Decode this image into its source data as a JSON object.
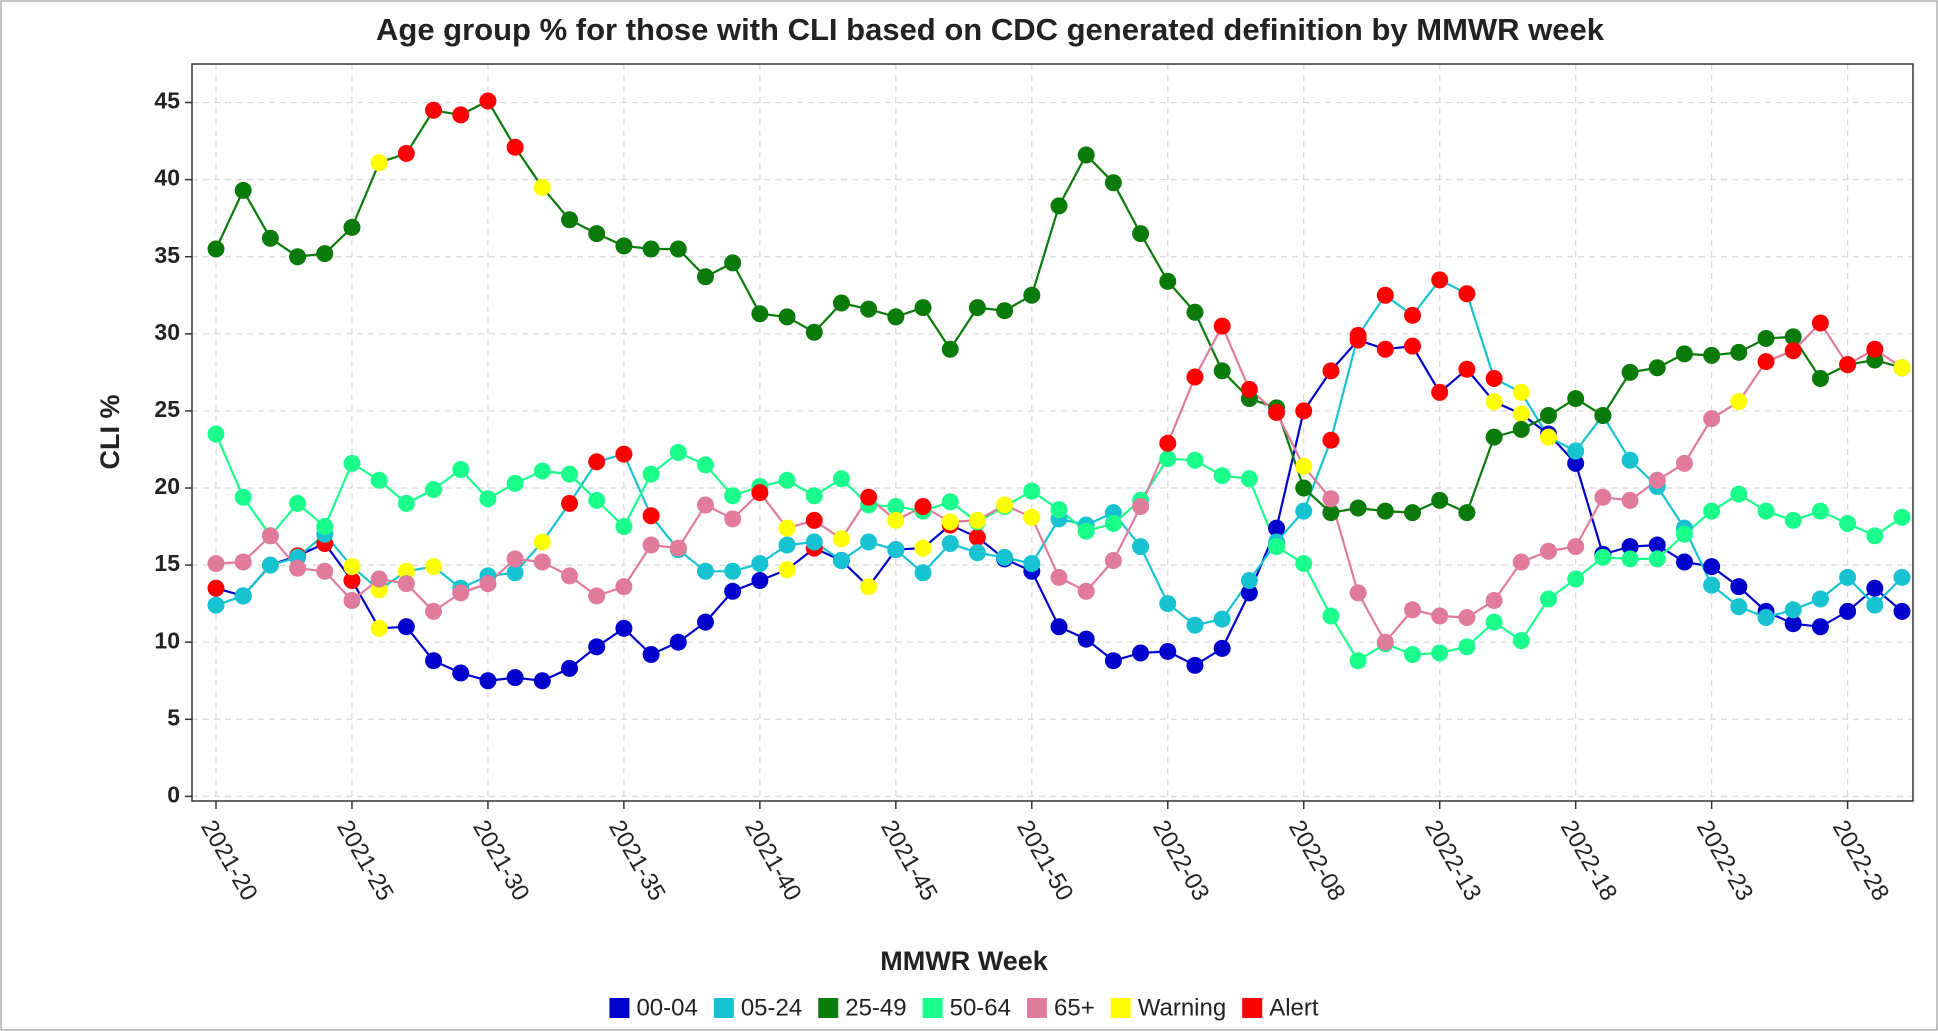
{
  "chart_data": {
    "type": "line",
    "title": "Age group % for those with CLI based on CDC generated definition by MMWR week",
    "x_label": "MMWR Week",
    "y_label": "CLI %",
    "categories": [
      "2021-20",
      null,
      null,
      null,
      null,
      "2021-25",
      null,
      null,
      null,
      null,
      "2021-30",
      null,
      null,
      null,
      null,
      "2021-35",
      null,
      null,
      null,
      null,
      "2021-40",
      null,
      null,
      null,
      null,
      "2021-45",
      null,
      null,
      null,
      null,
      "2021-50",
      null,
      null,
      null,
      null,
      "2022-03",
      null,
      null,
      null,
      null,
      "2022-08",
      null,
      null,
      null,
      null,
      "2022-13",
      null,
      null,
      null,
      null,
      "2022-18",
      null,
      null,
      null,
      null,
      "2022-23",
      null,
      null,
      null,
      null,
      "2022-28",
      null,
      null
    ],
    "ylim": [
      -0.3,
      47.5
    ],
    "yticks": [
      0,
      5,
      10,
      15,
      20,
      25,
      30,
      35,
      40,
      45
    ],
    "grid": true,
    "series": [
      {
        "name": "00-04",
        "color": "#0000cc",
        "values": [
          13.5,
          13.0,
          15.0,
          15.6,
          16.4,
          14.0,
          10.9,
          11.0,
          8.8,
          8.0,
          7.5,
          7.7,
          7.5,
          8.3,
          9.7,
          10.9,
          9.2,
          10.0,
          11.3,
          13.3,
          14.0,
          14.7,
          16.1,
          15.3,
          13.6,
          16.0,
          16.1,
          17.6,
          16.8,
          15.4,
          14.6,
          11.0,
          10.2,
          8.8,
          9.3,
          9.4,
          8.5,
          9.6,
          13.2,
          17.4,
          25.0,
          27.6,
          29.6,
          29.0,
          29.2,
          26.2,
          27.7,
          25.6,
          24.8,
          23.5,
          21.6,
          15.7,
          16.2,
          16.3,
          15.2,
          14.9,
          13.6,
          12.0,
          11.2,
          11.0,
          12.0,
          13.5,
          12.0
        ],
        "point_colors": [
          "#ff0000",
          null,
          "#ffff00",
          "#ff0000",
          "#ff0000",
          "#ff0000",
          "#ffff00",
          null,
          null,
          null,
          null,
          null,
          null,
          null,
          null,
          null,
          null,
          null,
          null,
          null,
          null,
          "#ffff00",
          "#ff0000",
          null,
          "#ffff00",
          null,
          "#ffff00",
          "#ff0000",
          "#ff0000",
          null,
          null,
          null,
          null,
          null,
          null,
          null,
          null,
          null,
          null,
          null,
          "#ff0000",
          "#ff0000",
          "#ff0000",
          "#ff0000",
          "#ff0000",
          "#ff0000",
          "#ff0000",
          "#ffff00",
          "#ffff00",
          null,
          null,
          null,
          null,
          null,
          null,
          null,
          null,
          null,
          null,
          null,
          null,
          null,
          null
        ]
      },
      {
        "name": "05-24",
        "color": "#17c3d0",
        "values": [
          12.4,
          13.0,
          15.0,
          15.5,
          17.0,
          14.9,
          13.4,
          14.6,
          14.9,
          13.5,
          14.3,
          14.5,
          16.5,
          19.0,
          21.7,
          22.2,
          18.2,
          16.0,
          14.6,
          14.6,
          15.1,
          16.3,
          16.5,
          15.3,
          16.5,
          16.0,
          14.5,
          16.4,
          15.8,
          15.5,
          15.1,
          18.0,
          17.6,
          18.4,
          16.2,
          12.5,
          11.1,
          11.5,
          14.0,
          16.5,
          18.5,
          23.1,
          29.9,
          32.5,
          31.2,
          33.5,
          32.6,
          27.1,
          26.2,
          23.3,
          22.4,
          24.7,
          21.8,
          20.1,
          17.4,
          13.7,
          12.3,
          11.6,
          12.1,
          12.8,
          14.2,
          12.4,
          14.2
        ],
        "point_colors": [
          null,
          null,
          null,
          null,
          null,
          "#ffff00",
          "#ffff00",
          "#ffff00",
          "#ffff00",
          null,
          null,
          null,
          "#ffff00",
          "#ff0000",
          "#ff0000",
          "#ff0000",
          "#ff0000",
          null,
          null,
          null,
          null,
          null,
          null,
          null,
          null,
          null,
          null,
          null,
          null,
          null,
          null,
          null,
          null,
          null,
          null,
          null,
          null,
          null,
          null,
          null,
          null,
          "#ff0000",
          "#ff0000",
          "#ff0000",
          "#ff0000",
          "#ff0000",
          "#ff0000",
          "#ff0000",
          "#ffff00",
          "#ffff00",
          null,
          null,
          null,
          null,
          null,
          null,
          null,
          null,
          null,
          null,
          null,
          null,
          null
        ]
      },
      {
        "name": "25-49",
        "color": "#0a7a0a",
        "values": [
          35.5,
          39.3,
          36.2,
          35.0,
          35.2,
          36.9,
          41.1,
          41.7,
          44.5,
          44.2,
          45.1,
          42.1,
          39.5,
          37.4,
          36.5,
          35.7,
          35.5,
          35.5,
          33.7,
          34.6,
          31.3,
          31.1,
          30.1,
          32.0,
          31.6,
          31.1,
          31.7,
          29.0,
          31.7,
          31.5,
          32.5,
          38.3,
          41.6,
          39.8,
          36.5,
          33.4,
          31.4,
          27.6,
          25.8,
          25.2,
          20.0,
          18.4,
          18.7,
          18.5,
          18.4,
          19.2,
          18.4,
          23.3,
          23.8,
          24.7,
          25.8,
          24.7,
          27.5,
          27.8,
          28.7,
          28.6,
          28.8,
          29.7,
          29.8,
          27.1,
          28.0,
          28.3,
          27.8
        ],
        "point_colors": [
          null,
          null,
          null,
          null,
          null,
          null,
          "#ffff00",
          "#ff0000",
          "#ff0000",
          "#ff0000",
          "#ff0000",
          "#ff0000",
          "#ffff00",
          null,
          null,
          null,
          null,
          null,
          null,
          null,
          null,
          null,
          null,
          null,
          null,
          null,
          null,
          null,
          null,
          null,
          null,
          null,
          null,
          null,
          null,
          null,
          null,
          null,
          null,
          null,
          null,
          null,
          null,
          null,
          null,
          null,
          null,
          null,
          null,
          null,
          null,
          null,
          null,
          null,
          null,
          null,
          null,
          null,
          null,
          null,
          null,
          null,
          null
        ]
      },
      {
        "name": "50-64",
        "color": "#1aff8c",
        "values": [
          23.5,
          19.4,
          16.9,
          19.0,
          17.5,
          21.6,
          20.5,
          19.0,
          19.9,
          21.2,
          19.3,
          20.3,
          21.1,
          20.9,
          19.2,
          17.5,
          20.9,
          22.3,
          21.5,
          19.5,
          20.1,
          20.5,
          19.5,
          20.6,
          18.9,
          18.8,
          18.5,
          19.1,
          17.8,
          18.8,
          19.8,
          18.6,
          17.2,
          17.7,
          19.2,
          21.9,
          21.8,
          20.8,
          20.6,
          16.2,
          15.1,
          11.7,
          8.8,
          9.9,
          9.2,
          9.3,
          9.7,
          11.3,
          10.1,
          12.8,
          14.1,
          15.5,
          15.4,
          15.4,
          17.0,
          18.5,
          19.6,
          18.5,
          17.9,
          18.5,
          17.7,
          16.9,
          18.1
        ],
        "point_colors": [
          null,
          null,
          null,
          null,
          null,
          null,
          null,
          null,
          null,
          null,
          null,
          null,
          null,
          null,
          null,
          null,
          null,
          null,
          null,
          null,
          null,
          null,
          null,
          null,
          null,
          null,
          null,
          null,
          null,
          null,
          null,
          null,
          null,
          null,
          null,
          null,
          null,
          null,
          null,
          null,
          null,
          null,
          null,
          null,
          null,
          null,
          null,
          null,
          null,
          null,
          null,
          null,
          null,
          null,
          null,
          null,
          null,
          null,
          null,
          null,
          null,
          null,
          null
        ]
      },
      {
        "name": "65+",
        "color": "#e07b9b",
        "values": [
          15.1,
          15.2,
          16.9,
          14.8,
          14.6,
          12.7,
          14.1,
          13.8,
          12.0,
          13.2,
          13.8,
          15.4,
          15.2,
          14.3,
          13.0,
          13.6,
          16.3,
          16.1,
          18.9,
          18.0,
          19.7,
          17.4,
          17.9,
          16.7,
          19.4,
          17.9,
          18.8,
          17.8,
          17.9,
          18.9,
          18.1,
          14.2,
          13.3,
          15.3,
          18.8,
          22.9,
          27.2,
          30.5,
          26.4,
          24.9,
          21.4,
          19.3,
          13.2,
          10.0,
          12.1,
          11.7,
          11.6,
          12.7,
          15.2,
          15.9,
          16.2,
          19.4,
          19.2,
          20.5,
          21.6,
          24.5,
          25.6,
          28.2,
          28.9,
          30.7,
          28.0,
          29.0,
          27.8
        ],
        "point_colors": [
          null,
          null,
          null,
          null,
          null,
          null,
          null,
          null,
          null,
          null,
          null,
          null,
          null,
          null,
          null,
          null,
          null,
          null,
          null,
          null,
          "#ff0000",
          "#ffff00",
          "#ff0000",
          "#ffff00",
          "#ff0000",
          "#ffff00",
          "#ff0000",
          "#ffff00",
          "#ffff00",
          "#ffff00",
          "#ffff00",
          null,
          null,
          null,
          null,
          "#ff0000",
          "#ff0000",
          "#ff0000",
          "#ff0000",
          "#ff0000",
          "#ffff00",
          null,
          null,
          null,
          null,
          null,
          null,
          null,
          null,
          null,
          null,
          null,
          null,
          null,
          null,
          null,
          "#ffff00",
          "#ff0000",
          "#ff0000",
          "#ff0000",
          "#ff0000",
          "#ff0000",
          "#ffff00"
        ]
      }
    ],
    "flag_legend": [
      {
        "name": "Warning",
        "color": "#ffff00"
      },
      {
        "name": "Alert",
        "color": "#ff0000"
      }
    ]
  }
}
